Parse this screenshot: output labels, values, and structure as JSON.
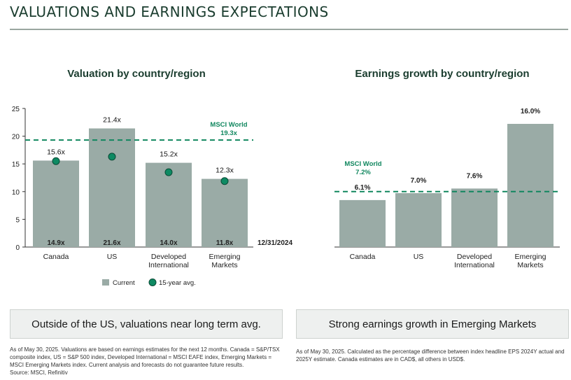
{
  "page": {
    "title": "VALUATIONS AND EARNINGS EXPECTATIONS",
    "left_callout": "Outside of the US, valuations near long term avg.",
    "right_callout": "Strong earnings growth in Emerging Markets",
    "left_note": "As of May 30, 2025. Valuations are based on earnings estimates for the next 12 months. Canada = S&P/TSX composite index, US = S&P 500 index, Developed International = MSCI EAFE index, Emerging Markets = MSCI Emerging Markets index. Current analysis and forecasts do not guarantee future results.",
    "left_source": "Source: MSCI, Refinitiv",
    "right_note": "As of May 30, 2025. Calculated as the percentage difference between index headline EPS 2024Y actual and 2025Y estimate. Canada estimates are in CAD$, all others in USD$."
  },
  "colors": {
    "bar": "#9aaba6",
    "avg_dot": "#0e8a63",
    "avg_dot_stroke": "#0a4a35",
    "reference_line": "#11875f",
    "axis": "#333333"
  },
  "chart_data": [
    {
      "type": "bar",
      "title": "Valuation by country/region",
      "categories": [
        [
          "Canada"
        ],
        [
          "US"
        ],
        [
          "Developed",
          "International"
        ],
        [
          "Emerging",
          "Markets"
        ]
      ],
      "series": [
        {
          "name": "Current",
          "values": [
            15.6,
            21.4,
            15.2,
            12.3
          ],
          "labels": [
            "15.6x",
            "21.4x",
            "15.2x",
            "12.3x"
          ]
        },
        {
          "name": "15-year avg.",
          "values": [
            15.5,
            16.3,
            13.5,
            11.9
          ]
        }
      ],
      "base_labels": [
        "14.9x",
        "21.6x",
        "14.0x",
        "11.8x"
      ],
      "base_label_date": "12/31/2024",
      "reference": {
        "label": "MSCI World",
        "value_label": "19.3x",
        "value": 19.3
      },
      "yticks": [
        0,
        5,
        10,
        15,
        20,
        25
      ],
      "ylim": [
        0,
        25
      ],
      "legend_position": "bottom"
    },
    {
      "type": "bar",
      "title": "Earnings growth by country/region",
      "categories": [
        [
          "Canada"
        ],
        [
          "US"
        ],
        [
          "Developed",
          "International"
        ],
        [
          "Emerging",
          "Markets"
        ]
      ],
      "values": [
        6.1,
        7.0,
        7.6,
        16.0
      ],
      "labels": [
        "6.1%",
        "7.0%",
        "7.6%",
        "16.0%"
      ],
      "reference": {
        "label": "MSCI World",
        "value_label": "7.2%",
        "value": 7.2
      }
    }
  ]
}
